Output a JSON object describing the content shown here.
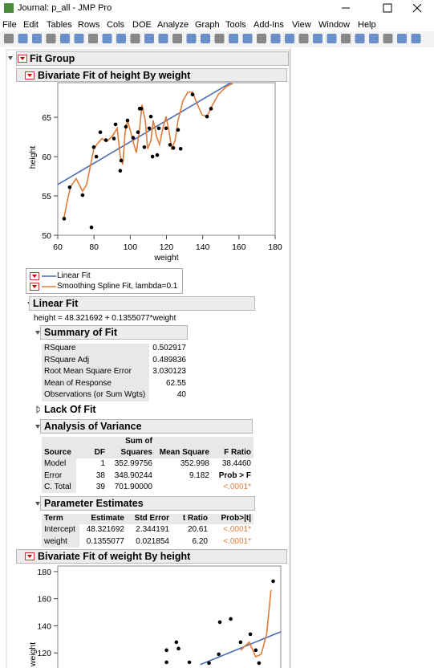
{
  "window": {
    "title": "Journal: p_all - JMP Pro"
  },
  "menu": [
    "File",
    "Edit",
    "Tables",
    "Rows",
    "Cols",
    "DOE",
    "Analyze",
    "Graph",
    "Tools",
    "Add-Ins",
    "View",
    "Window",
    "Help"
  ],
  "report": {
    "group_title": "Fit Group",
    "plot1": {
      "title": "Bivariate Fit of height By weight",
      "x_label": "weight",
      "y_label": "height",
      "xlim": [
        60,
        180
      ],
      "ylim": [
        50,
        69.4
      ],
      "xticks": [
        60,
        80,
        100,
        120,
        140,
        160,
        180
      ],
      "yticks": [
        50,
        55,
        60,
        65
      ],
      "linear_color": "#4a6fb5",
      "spline_color": "#e07b39",
      "points": {
        "x": [
          63.5,
          66.6,
          73.7,
          78.6,
          79.9,
          81.3,
          83.5,
          86.6,
          91.0,
          91.9,
          94.5,
          95.0,
          97.6,
          98.5,
          101.6,
          104.3,
          105.2,
          106.1,
          107.8,
          110.5,
          111.4,
          112.3,
          114.9,
          115.8,
          119.8,
          122.0,
          123.8,
          126.4,
          127.8,
          134.4,
          142.4,
          144.6
        ],
        "y": [
          52.1,
          56.1,
          55.1,
          51.0,
          61.2,
          60.0,
          63.1,
          62.1,
          62.3,
          64.1,
          58.2,
          59.5,
          63.8,
          64.6,
          62.4,
          63.1,
          66.1,
          66.1,
          61.2,
          63.6,
          65.1,
          60.0,
          60.2,
          63.6,
          63.6,
          61.5,
          61.1,
          63.4,
          61.0,
          67.9,
          65.1,
          66.1
        ]
      },
      "spline": {
        "x": [
          63.5,
          65.3,
          67.1,
          70.2,
          73.7,
          75.9,
          78.2,
          79.9,
          82.1,
          84.4,
          87.0,
          90.1,
          92.8,
          94.5,
          95.9,
          97.2,
          98.5,
          100.3,
          102.1,
          103.4,
          105.2,
          106.5,
          108.3,
          109.6,
          111.4,
          112.7,
          114.5,
          116.2,
          118.0,
          119.8,
          121.5,
          122.9,
          124.7,
          126.4,
          129.1,
          131.8,
          134.4,
          137.1,
          139.7,
          142.4,
          145.0,
          148.6,
          153.0,
          156.6
        ],
        "y": [
          52.3,
          54.4,
          56.2,
          57.2,
          55.6,
          56.4,
          59.0,
          61.0,
          61.7,
          62.3,
          61.9,
          62.6,
          63.6,
          60.0,
          59.0,
          63.1,
          64.6,
          63.1,
          61.5,
          60.5,
          63.6,
          66.6,
          64.6,
          61.0,
          62.0,
          64.6,
          62.6,
          61.5,
          63.6,
          65.1,
          63.1,
          61.0,
          62.0,
          64.6,
          67.1,
          68.2,
          68.2,
          66.6,
          65.3,
          65.1,
          66.4,
          67.9,
          68.9,
          69.3
        ]
      }
    },
    "legend": [
      "Linear Fit",
      "Smoothing Spline Fit, lambda=0.1"
    ],
    "linear_fit": {
      "title": "Linear Fit",
      "equation": "height = 48.321692 + 0.1355077*weight"
    },
    "summary": {
      "title": "Summary of Fit",
      "rows": [
        [
          "RSquare",
          "0.502917"
        ],
        [
          "RSquare Adj",
          "0.489836"
        ],
        [
          "Root Mean Square Error",
          "3.030123"
        ],
        [
          "Mean of Response",
          "62.55"
        ],
        [
          "Observations (or Sum Wgts)",
          "40"
        ]
      ]
    },
    "lack_of_fit": "Lack Of Fit",
    "anova": {
      "title": "Analysis of Variance",
      "header_top": "Sum of",
      "columns": [
        "Source",
        "DF",
        "Squares",
        "Mean Square",
        "F Ratio"
      ],
      "rows": [
        [
          "Model",
          "1",
          "352.99756",
          "352.998",
          "38.4460"
        ],
        [
          "Error",
          "38",
          "348.90244",
          "9.182",
          "Prob > F"
        ],
        [
          "C. Total",
          "39",
          "701.90000",
          null,
          "<.0001*"
        ]
      ]
    },
    "parameters": {
      "title": "Parameter Estimates",
      "columns": [
        "Term",
        "Estimate",
        "Std Error",
        "t Ratio",
        "Prob>|t|"
      ],
      "rows": [
        [
          "Intercept",
          "48.321692",
          "2.344191",
          "20.61",
          "<.0001*"
        ],
        [
          "weight",
          "0.1355077",
          "0.021854",
          "6.20",
          "<.0001*"
        ]
      ]
    },
    "plot2": {
      "title": "Bivariate Fit of weight By height",
      "y_label": "weight",
      "xlim": [
        50,
        70.5
      ],
      "ylim": [
        100,
        184.1
      ],
      "yticks": [
        120,
        140,
        160,
        180
      ],
      "linear_color": "#4a6fb5",
      "spline_color": "#e07b39",
      "points": {
        "x": [
          60.0,
          60.0,
          60.9,
          61.1,
          62.1,
          63.9,
          64.8,
          64.9,
          65.9,
          66.8,
          67.7,
          68.2,
          68.5,
          69.8
        ],
        "y": [
          122.0,
          113.1,
          127.9,
          123.2,
          113.1,
          112.5,
          119.0,
          142.7,
          145.1,
          127.9,
          133.8,
          122.0,
          112.5,
          172.9
        ]
      },
      "fit_line": {
        "x": [
          63.1,
          70.5
        ],
        "y": [
          111.4,
          135.6
        ]
      },
      "spline": {
        "x": [
          66.8,
          67.6,
          68.2,
          68.7,
          69.2,
          69.6
        ],
        "y": [
          122.0,
          127.9,
          117.2,
          119.0,
          133.8,
          166.4
        ]
      }
    }
  }
}
